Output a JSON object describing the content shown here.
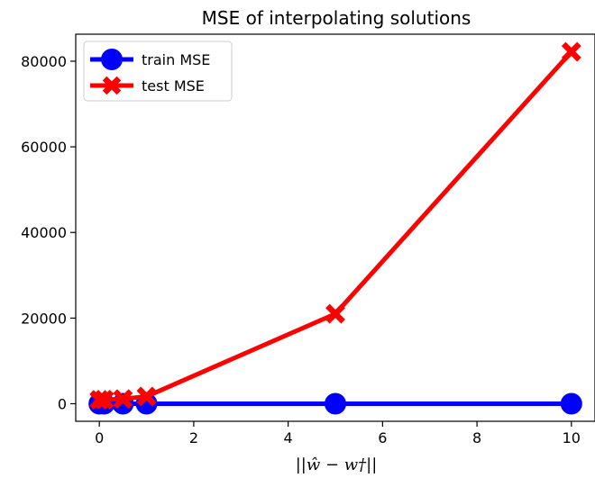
{
  "chart_data": {
    "type": "line",
    "title": "MSE of interpolating solutions",
    "xlabel": "||ŵ − w†||",
    "ylabel": "",
    "xlim": [
      -0.5,
      10.5
    ],
    "ylim": [
      -4100,
      86300
    ],
    "x_ticks": [
      0,
      2,
      4,
      6,
      8,
      10
    ],
    "y_ticks": [
      0,
      20000,
      40000,
      60000,
      80000
    ],
    "grid": false,
    "legend_position": "top-left",
    "series": [
      {
        "name": "train MSE",
        "color": "#0000ff",
        "marker": "circle",
        "x": [
          0,
          0.1,
          0.5,
          1,
          5,
          10
        ],
        "y": [
          0,
          0,
          0,
          0,
          0,
          0
        ]
      },
      {
        "name": "test MSE",
        "color": "#ff0000",
        "marker": "x",
        "x": [
          0,
          0.1,
          0.5,
          1,
          5,
          10
        ],
        "y": [
          900,
          950,
          1100,
          1700,
          21000,
          82200
        ]
      }
    ]
  }
}
